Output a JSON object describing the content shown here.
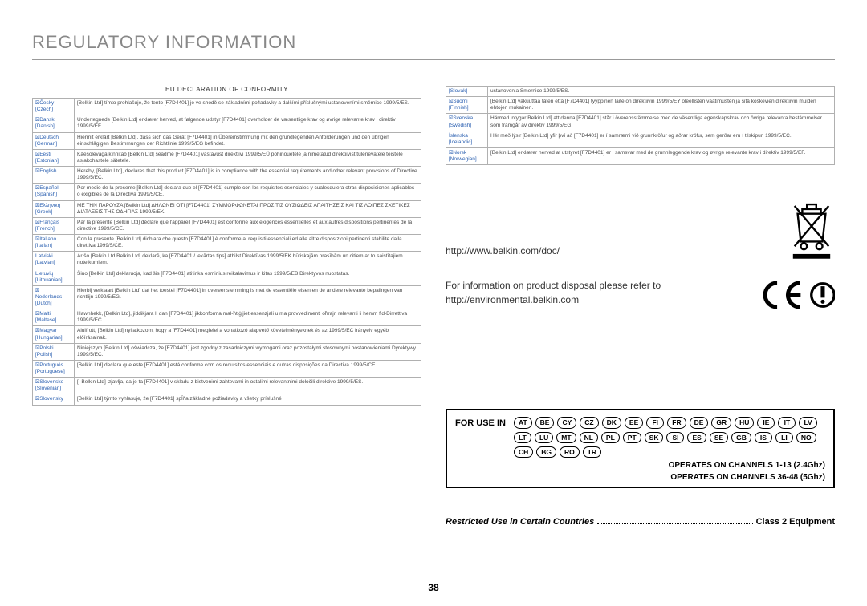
{
  "title": "REGULATORY INFORMATION",
  "eu_heading": "EU DECLARATION OF CONFORMITY",
  "url": "http://www.belkin.com/doc/",
  "disposal": "For information on product disposal please refer to http://environmental.belkin.com",
  "for_use_label": "FOR USE IN",
  "countries": [
    "AT",
    "BE",
    "CY",
    "CZ",
    "DK",
    "EE",
    "FI",
    "FR",
    "DE",
    "GR",
    "HU",
    "IE",
    "IT",
    "LV",
    "LT",
    "LU",
    "MT",
    "NL",
    "PL",
    "PT",
    "SK",
    "SI",
    "ES",
    "SE",
    "GB",
    "IS",
    "LI",
    "NO",
    "CH",
    "BG",
    "RO",
    "TR"
  ],
  "ops1": "OPERATES ON CHANNELS 1-13 (2.4Ghz)",
  "ops2": "OPERATES ON CHANNELS 36-48 (5Ghz)",
  "restricted_left": "Restricted Use in Certain Countries",
  "restricted_right": "Class 2 Equipment",
  "page_num": "38",
  "left_rows": [
    {
      "lang": [
        "⮽Česky",
        "[Czech]"
      ],
      "text": "[Belkin Ltd] tímto prohlašuje, že tento [F7D4401] je ve shodě se základními požadavky a dalšími příslušnými ustanoveními směrnice 1999/5/ES."
    },
    {
      "lang": [
        "⮽Dansk",
        "[Danish]"
      ],
      "text": "Undertegnede [Belkin Ltd] erklærer herved, at følgende udstyr [F7D4401] overholder de væsentlige krav og øvrige relevante krav i direktiv 1999/5/EF."
    },
    {
      "lang": [
        "⮽Deutsch",
        "[German]"
      ],
      "text": "Hiermit erklärt [Belkin Ltd], dass sich das Gerät [F7D4401] in Übereinstimmung mit den grundlegenden Anforderungen und den übrigen einschlägigen Bestimmungen der Richtlinie 1999/5/EG befindet."
    },
    {
      "lang": [
        "⮽Eesti",
        "[Estonian]"
      ],
      "text": "Käesolevaga kinnitab [Belkin Ltd] seadme [F7D4401] vastavust direktiivi 1999/5/EÜ põhinõuetele ja nimetatud direktiivist tulenevatele teistele asjakohastele sätetele."
    },
    {
      "lang": [
        "⮽English"
      ],
      "text": "Hereby, [Belkin Ltd], declares that this product [F7D4401] is in compliance with the essential requirements and other relevant provisions of Directive 1999/5/EC."
    },
    {
      "lang": [
        "⮽Español",
        "[Spanish]"
      ],
      "text": "Por medio de la presente [Belkin Ltd] declara que el [F7D4401] cumple con los requisitos esenciales y cualesquiera otras disposiciones aplicables o exigibles de la Directiva 1999/5/CE."
    },
    {
      "lang": [
        "⮽Ελληνική",
        "[Greek]"
      ],
      "text": "ΜΕ ΤΗΝ ΠΑΡΟΥΣΑ [Belkin Ltd] ΔΗΛΩΝΕΙ ΟΤΙ [F7D4401] ΣΥΜΜΟΡΦΩΝΕΤΑΙ ΠΡΟΣ ΤΙΣ ΟΥΣΙΩΔΕΙΣ ΑΠΑΙΤΗΣΕΙΣ ΚΑΙ ΤΙΣ ΛΟΙΠΕΣ ΣΧΕΤΙΚΕΣ ΔΙΑΤΑΞΕΙΣ ΤΗΣ ΟΔΗΓΙΑΣ 1999/5/ΕΚ."
    },
    {
      "lang": [
        "⮽Français",
        "[French]"
      ],
      "text": "Par la présente [Belkin Ltd] déclare que l'appareil [F7D4401] est conforme aux exigences essentielles et aux autres dispositions pertinentes de la directive 1999/5/CE."
    },
    {
      "lang": [
        "⮽Italiano",
        "[Italian]"
      ],
      "text": "Con la presente [Belkin Ltd] dichiara che questo [F7D4401] è conforme ai requisiti essenziali ed alle altre disposizioni pertinenti stabilite dalla direttiva 1999/5/CE."
    },
    {
      "lang": [
        "Latviski",
        "[Latvian]"
      ],
      "text": "Ar šo [Belkin Ltd Belkin Ltd] deklarē, ka [F7D4401 / iekārtas tips] atbilst Direktīvas 1999/5/EK būtiskajām prasībām un citiem ar to saistītajiem noteikumiem."
    },
    {
      "lang": [
        "Lietuvių",
        "[Lithuanian]"
      ],
      "text": "Šiuo [Belkin Ltd] deklaruoja, kad šis [F7D4401] atitinka esminius reikalavimus ir kitas 1999/5/EB Direktyvos nuostatas."
    },
    {
      "lang": [
        "⮽",
        "Nederlands",
        "[Dutch]"
      ],
      "text": "Hierbij verklaart [Belkin Ltd] dat het toestel [F7D4401] in overeenstemming is met de essentiële eisen en de andere relevante bepalingen van richtlijn 1999/5/EG."
    },
    {
      "lang": [
        "⮽Malti",
        "[Maltese]"
      ],
      "text": "Hawnhekk, [Belkin Ltd], jiddikjara li dan [F7D4401] jikkonforma mal-ħtiġijiet essenzjali u ma provvedimenti oħrajn relevanti li hemm fid-Dirrettiva 1999/5/EC."
    },
    {
      "lang": [
        "⮽Magyar",
        "[Hungarian]"
      ],
      "text": "Alulírott, [Belkin Ltd] nyilatkozom, hogy a [F7D4401] megfelel a vonatkozó alapvető követelményeknek és az 1999/5/EC irányelv egyéb előírásainak."
    },
    {
      "lang": [
        "⮽Polski",
        "[Polish]"
      ],
      "text": "Niniejszym [Belkin Ltd] oświadcza, że [F7D4401] jest zgodny z zasadniczymi wymogami oraz pozostałymi stosownymi postanowieniami Dyrektywy 1999/5/EC."
    },
    {
      "lang": [
        "⮽Português",
        "[Portuguese]"
      ],
      "text": "[Belkin Ltd] declara que este [F7D4401] está conforme com os requisitos essenciais e outras disposições da Directiva 1999/5/CE."
    },
    {
      "lang": [
        "⮽Slovensko",
        "[Slovenian]"
      ],
      "text": "[I Belkin Ltd] izjavlja, da je ta [F7D4401] v skladu z bistvenimi zahtevami in ostalimi relevantnimi določili direktive 1999/5/ES."
    },
    {
      "lang": [
        "⮽Slovensky"
      ],
      "text": "[Belkin Ltd] týmto vyhlasuje, že [F7D4401] spĺňa základné požiadavky a všetky príslušné"
    }
  ],
  "right_rows": [
    {
      "lang": [
        "[Slovak]"
      ],
      "text": "ustanovenia Smernice 1999/5/ES."
    },
    {
      "lang": [
        "⮽Suomi",
        "[Finnish]"
      ],
      "text": "[Belkin Ltd] vakuuttaa täten että [F7D4401] tyyppinen laite on direktiivin 1999/5/EY oleellisten vaatimusten ja sitä koskevien direktiivin muiden ehtojen mukainen."
    },
    {
      "lang": [
        "⮽Svenska",
        "[Swedish]"
      ],
      "text": "Härmed intygar Belkin Ltd] att denna [F7D4401] står i överensstämmelse med de väsentliga egenskapskrav och övriga relevanta bestämmelser som framgår av direktiv 1999/5/EG."
    },
    {
      "lang": [
        "Íslenska",
        "[Icelandic]"
      ],
      "text": "Hér með lýsir [Belkin Ltd] yfir því að [F7D4401] er í samræmi við grunnkröfur og aðrar kröfur, sem gerðar eru í tilskipun 1999/5/EC."
    },
    {
      "lang": [
        "⮽Norsk",
        "[Norwegian]"
      ],
      "text": "[Belkin Ltd] erklærer herved at utstyret [F7D4401] er i samsvar med de grunnleggende krav og øvrige relevante krav i direktiv 1999/5/EF."
    }
  ]
}
